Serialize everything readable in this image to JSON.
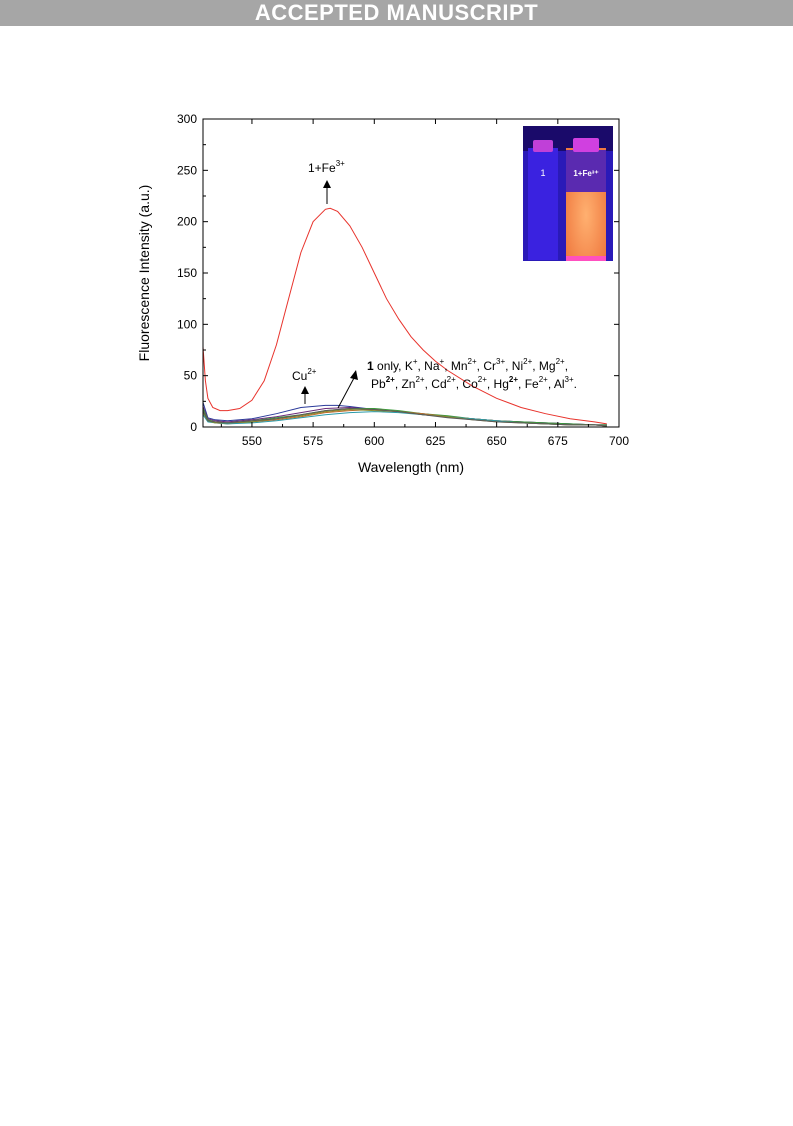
{
  "banner": {
    "text": "ACCEPTED MANUSCRIPT"
  },
  "chart_data": {
    "type": "line",
    "xlabel": "Wavelength (nm)",
    "ylabel": "Fluorescence Intensity (a.u.)",
    "xlim": [
      530,
      700
    ],
    "ylim": [
      0,
      300
    ],
    "xticks": [
      550,
      575,
      600,
      625,
      650,
      675,
      700
    ],
    "yticks": [
      0,
      50,
      100,
      150,
      200,
      250,
      300
    ],
    "grid": false,
    "annotations": {
      "fe": {
        "main": "1+Fe",
        "sup": "3+"
      },
      "cu": {
        "main": "Cu",
        "sup": "2+"
      },
      "others_line1": [
        {
          "t": "1",
          "b": true
        },
        {
          "t": " only, K"
        },
        {
          "t": "+",
          "sup": true
        },
        {
          "t": ", Na"
        },
        {
          "t": "+",
          "sup": true
        },
        {
          "t": ", Mn"
        },
        {
          "t": "2+",
          "sup": true
        },
        {
          "t": ", Cr"
        },
        {
          "t": "3+",
          "sup": true
        },
        {
          "t": ", Ni"
        },
        {
          "t": "2+",
          "sup": true
        },
        {
          "t": ", Mg"
        },
        {
          "t": "2+",
          "sup": true
        },
        {
          "t": ","
        }
      ],
      "others_line2": [
        {
          "t": "Pb"
        },
        {
          "t": "2+",
          "sup": true,
          "b": true
        },
        {
          "t": ", Zn"
        },
        {
          "t": "2+",
          "sup": true
        },
        {
          "t": ", Cd"
        },
        {
          "t": "2+",
          "sup": true
        },
        {
          "t": ", Co"
        },
        {
          "t": "2+",
          "sup": true
        },
        {
          "t": ", Hg"
        },
        {
          "t": "2+",
          "sup": true,
          "b": true
        },
        {
          "t": ", Fe"
        },
        {
          "t": "2+",
          "sup": true
        },
        {
          "t": ", Al"
        },
        {
          "t": "3+",
          "sup": true
        },
        {
          "t": "."
        }
      ]
    },
    "inset": {
      "vial1_label": "1",
      "vial2_label": "1+Fe³⁺"
    },
    "series": [
      {
        "color": "#e8332c",
        "x": [
          530,
          531,
          532,
          534,
          537,
          540,
          545,
          550,
          555,
          560,
          565,
          570,
          575,
          580,
          582,
          585,
          590,
          595,
          600,
          605,
          610,
          615,
          620,
          625,
          630,
          640,
          650,
          660,
          670,
          680,
          690,
          695
        ],
        "y": [
          78,
          45,
          28,
          19,
          16,
          16,
          18,
          26,
          45,
          80,
          125,
          170,
          200,
          212,
          213,
          210,
          196,
          175,
          150,
          125,
          105,
          88,
          75,
          64,
          55,
          40,
          28,
          19,
          13,
          8,
          5,
          3
        ]
      },
      {
        "color": "#2b3a9a",
        "x": [
          530,
          532,
          535,
          540,
          550,
          560,
          570,
          580,
          585,
          590,
          600,
          610,
          620,
          630,
          640,
          650,
          660,
          670,
          680,
          690,
          695
        ],
        "y": [
          24,
          9,
          7,
          6,
          8,
          13,
          19,
          21,
          21,
          20,
          17,
          15,
          13,
          10,
          8,
          6,
          5,
          4,
          3,
          2,
          2
        ]
      },
      {
        "color": "#6a2a7a",
        "x": [
          530,
          532,
          535,
          540,
          550,
          560,
          570,
          580,
          590,
          600,
          610,
          620,
          630,
          640,
          650,
          660,
          670,
          680,
          690,
          695
        ],
        "y": [
          20,
          8,
          6,
          5,
          7,
          10,
          14,
          18,
          19,
          17,
          15,
          12,
          10,
          8,
          6,
          5,
          4,
          3,
          2,
          2
        ]
      },
      {
        "color": "#3a9a3a",
        "x": [
          530,
          532,
          535,
          540,
          550,
          560,
          570,
          580,
          590,
          600,
          610,
          620,
          630,
          640,
          650,
          660,
          670,
          680,
          690,
          695
        ],
        "y": [
          18,
          7,
          5,
          4,
          6,
          9,
          12,
          16,
          18,
          18,
          16,
          13,
          11,
          8,
          6,
          5,
          4,
          3,
          2,
          2
        ]
      },
      {
        "color": "#c06a2a",
        "x": [
          530,
          532,
          535,
          540,
          550,
          560,
          570,
          580,
          590,
          600,
          610,
          620,
          630,
          640,
          650,
          660,
          670,
          680,
          690,
          695
        ],
        "y": [
          15,
          6,
          4,
          3,
          5,
          7,
          10,
          14,
          16,
          17,
          15,
          13,
          10,
          8,
          6,
          4,
          3,
          2,
          2,
          1
        ]
      },
      {
        "color": "#2a9aa8",
        "x": [
          530,
          532,
          535,
          540,
          550,
          560,
          570,
          580,
          590,
          600,
          610,
          620,
          630,
          640,
          650,
          660,
          670,
          680,
          690,
          695
        ],
        "y": [
          12,
          5,
          4,
          3,
          4,
          6,
          9,
          12,
          14,
          15,
          14,
          12,
          10,
          8,
          6,
          4,
          3,
          2,
          2,
          1
        ]
      },
      {
        "color": "#8a8a2a",
        "x": [
          530,
          532,
          535,
          540,
          550,
          560,
          570,
          580,
          590,
          600,
          610,
          620,
          630,
          640,
          650,
          660,
          670,
          680,
          690,
          695
        ],
        "y": [
          14,
          6,
          4,
          4,
          5,
          8,
          11,
          15,
          17,
          16,
          15,
          12,
          10,
          7,
          5,
          4,
          3,
          2,
          2,
          1
        ]
      },
      {
        "color": "#5a5a5a",
        "x": [
          530,
          532,
          535,
          540,
          550,
          560,
          570,
          580,
          590,
          600,
          610,
          620,
          630,
          640,
          650,
          660,
          670,
          680,
          690,
          695
        ],
        "y": [
          16,
          6,
          5,
          4,
          6,
          8,
          12,
          16,
          18,
          17,
          15,
          12,
          9,
          7,
          5,
          4,
          3,
          2,
          2,
          1
        ]
      }
    ]
  }
}
